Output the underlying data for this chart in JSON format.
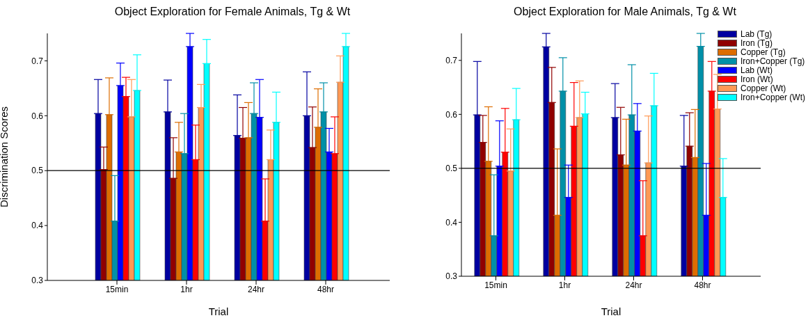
{
  "chart_data": [
    {
      "type": "bar",
      "title": "Object Exploration for Female Animals, Tg & Wt",
      "xlabel": "Trial",
      "ylabel": "Discrimination Scores",
      "categories": [
        "15min",
        "1hr",
        "24hr",
        "48hr"
      ],
      "ylim": [
        0.3,
        0.75
      ],
      "yticks": [
        0.3,
        0.4,
        0.5,
        0.6,
        0.7
      ],
      "grid": false,
      "legend": false,
      "ref_lines": [
        {
          "axis": "y",
          "value": 0.5,
          "color": "#000000"
        }
      ],
      "series": [
        {
          "color": "#0000a0",
          "values": [
            0.604,
            0.607,
            0.564,
            0.6
          ],
          "errors": [
            [
              0.604,
              0.666
            ],
            [
              0.607,
              0.665
            ],
            [
              0.564,
              0.638
            ],
            [
              0.6,
              0.68
            ]
          ]
        },
        {
          "color": "#900000",
          "values": [
            0.502,
            0.486,
            0.559,
            0.542
          ],
          "errors": [
            [
              0.502,
              0.543
            ],
            [
              0.486,
              0.56
            ],
            [
              0.559,
              0.615
            ],
            [
              0.542,
              0.616
            ]
          ]
        },
        {
          "color": "#dd6d00",
          "values": [
            0.602,
            0.534,
            0.56,
            0.579
          ],
          "errors": [
            [
              0.602,
              0.669
            ],
            [
              0.534,
              0.588
            ],
            [
              0.56,
              0.624
            ],
            [
              0.579,
              0.649
            ]
          ]
        },
        {
          "color": "#0090a8",
          "values": [
            0.408,
            0.531,
            0.604,
            0.607
          ],
          "errors": [
            [
              0.408,
              0.491
            ],
            [
              0.531,
              0.604
            ],
            [
              0.604,
              0.66
            ],
            [
              0.607,
              0.66
            ]
          ]
        },
        {
          "color": "#0000ff",
          "values": [
            0.655,
            0.726,
            0.597,
            0.534
          ],
          "errors": [
            [
              0.655,
              0.696
            ],
            [
              0.726,
              0.75
            ],
            [
              0.597,
              0.666
            ],
            [
              0.534,
              0.577
            ]
          ]
        },
        {
          "color": "#ff0000",
          "values": [
            0.635,
            0.52,
            0.408,
            0.531
          ],
          "errors": [
            [
              0.635,
              0.67
            ],
            [
              0.52,
              0.583
            ],
            [
              0.408,
              0.485
            ],
            [
              0.531,
              0.598
            ]
          ]
        },
        {
          "color": "#ff9955",
          "values": [
            0.598,
            0.615,
            0.52,
            0.661
          ],
          "errors": [
            [
              0.598,
              0.666
            ],
            [
              0.615,
              0.657
            ],
            [
              0.52,
              0.574
            ],
            [
              0.661,
              0.709
            ]
          ]
        },
        {
          "color": "#00ffff",
          "values": [
            0.646,
            0.695,
            0.588,
            0.726
          ],
          "errors": [
            [
              0.646,
              0.711
            ],
            [
              0.695,
              0.739
            ],
            [
              0.588,
              0.643
            ],
            [
              0.726,
              0.75
            ]
          ]
        }
      ]
    },
    {
      "type": "bar",
      "title": "Object Exploration for Male Animals, Tg & Wt",
      "xlabel": "Trial",
      "categories": [
        "15min",
        "1hr",
        "24hr",
        "48hr"
      ],
      "ylim": [
        0.3,
        0.75
      ],
      "yticks": [
        0.3,
        0.4,
        0.5,
        0.6,
        0.7
      ],
      "grid": false,
      "legend": "top right",
      "ref_lines": [
        {
          "axis": "y",
          "value": 0.5,
          "color": "#000000"
        }
      ],
      "series": [
        {
          "name": "Lab (Tg)",
          "color": "#0000a0",
          "values": [
            0.599,
            0.725,
            0.594,
            0.504
          ],
          "errors": [
            [
              0.599,
              0.698
            ],
            [
              0.725,
              0.75
            ],
            [
              0.594,
              0.657
            ],
            [
              0.504,
              0.598
            ]
          ]
        },
        {
          "name": "Iron (Tg)",
          "color": "#900000",
          "values": [
            0.548,
            0.622,
            0.525,
            0.541
          ],
          "errors": [
            [
              0.548,
              0.598
            ],
            [
              0.622,
              0.687
            ],
            [
              0.525,
              0.613
            ],
            [
              0.541,
              0.603
            ]
          ]
        },
        {
          "name": "Copper (Tg)",
          "color": "#dd6d00",
          "values": [
            0.513,
            0.413,
            0.506,
            0.52
          ],
          "errors": [
            [
              0.513,
              0.614
            ],
            [
              0.413,
              0.536
            ],
            [
              0.506,
              0.591
            ],
            [
              0.52,
              0.609
            ]
          ]
        },
        {
          "name": "Iron+Copper (Tg)",
          "color": "#0090a8",
          "values": [
            0.375,
            0.643,
            0.599,
            0.726
          ],
          "errors": [
            [
              0.375,
              0.488
            ],
            [
              0.643,
              0.705
            ],
            [
              0.599,
              0.692
            ],
            [
              0.726,
              0.75
            ]
          ]
        },
        {
          "name": "Lab (Wt)",
          "color": "#0000ff",
          "values": [
            0.504,
            0.446,
            0.569,
            0.413
          ],
          "errors": [
            [
              0.504,
              0.588
            ],
            [
              0.446,
              0.506
            ],
            [
              0.569,
              0.62
            ],
            [
              0.413,
              0.509
            ]
          ]
        },
        {
          "name": "Iron (Wt)",
          "color": "#ff0000",
          "values": [
            0.53,
            0.578,
            0.375,
            0.643
          ],
          "errors": [
            [
              0.53,
              0.611
            ],
            [
              0.578,
              0.659
            ],
            [
              0.375,
              0.477
            ],
            [
              0.643,
              0.698
            ]
          ]
        },
        {
          "name": "Copper (Wt)",
          "color": "#ff9955",
          "values": [
            0.495,
            0.594,
            0.51,
            0.61
          ],
          "errors": [
            [
              0.495,
              0.573
            ],
            [
              0.594,
              0.662
            ],
            [
              0.51,
              0.597
            ],
            [
              0.61,
              0.674
            ]
          ]
        },
        {
          "name": "Iron+Copper (Wt)",
          "color": "#00ffff",
          "values": [
            0.59,
            0.601,
            0.616,
            0.446
          ],
          "errors": [
            [
              0.59,
              0.648
            ],
            [
              0.601,
              0.641
            ],
            [
              0.616,
              0.676
            ],
            [
              0.446,
              0.518
            ]
          ]
        }
      ]
    }
  ]
}
